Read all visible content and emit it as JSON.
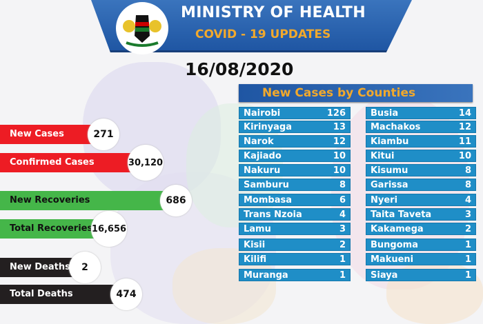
{
  "header": {
    "title": "MINISTRY OF HEALTH",
    "subtitle": "COVID - 19 UPDATES",
    "date": "16/08/2020"
  },
  "colors": {
    "banner": "#1f56a3",
    "accent": "#f2a92c",
    "row": "#1f8ec7",
    "red": "#ed1c24",
    "green": "#45b649",
    "black": "#231f20"
  },
  "stats": [
    {
      "label": "New Cases",
      "value": "271",
      "color": "red"
    },
    {
      "label": "Confirmed Cases",
      "value": "30,120",
      "color": "red"
    },
    {
      "label": "New Recoveries",
      "value": "686",
      "color": "green"
    },
    {
      "label": "Total Recoveries",
      "value": "16,656",
      "color": "green"
    },
    {
      "label": "New Deaths",
      "value": "2",
      "color": "black"
    },
    {
      "label": "Total Deaths",
      "value": "474",
      "color": "black"
    }
  ],
  "counties": {
    "title": "New Cases by Counties",
    "left": [
      {
        "name": "Nairobi",
        "count": "126"
      },
      {
        "name": "Kirinyaga",
        "count": "13"
      },
      {
        "name": "Narok",
        "count": "12"
      },
      {
        "name": "Kajiado",
        "count": "10"
      },
      {
        "name": "Nakuru",
        "count": "10"
      },
      {
        "name": "Samburu",
        "count": "8"
      },
      {
        "name": "Mombasa",
        "count": "6"
      },
      {
        "name": "Trans Nzoia",
        "count": "4"
      },
      {
        "name": "Lamu",
        "count": "3"
      },
      {
        "name": "Kisii",
        "count": "2"
      },
      {
        "name": "Kilifi",
        "count": "1"
      },
      {
        "name": "Muranga",
        "count": "1"
      }
    ],
    "right": [
      {
        "name": "Busia",
        "count": "14"
      },
      {
        "name": "Machakos",
        "count": "12"
      },
      {
        "name": "Kiambu",
        "count": "11"
      },
      {
        "name": "Kitui",
        "count": "10"
      },
      {
        "name": "Kisumu",
        "count": "8"
      },
      {
        "name": "Garissa",
        "count": "8"
      },
      {
        "name": "Nyeri",
        "count": "4"
      },
      {
        "name": "Taita Taveta",
        "count": "3"
      },
      {
        "name": "Kakamega",
        "count": "2"
      },
      {
        "name": "Bungoma",
        "count": "1"
      },
      {
        "name": "Makueni",
        "count": "1"
      },
      {
        "name": "Siaya",
        "count": "1"
      }
    ]
  }
}
